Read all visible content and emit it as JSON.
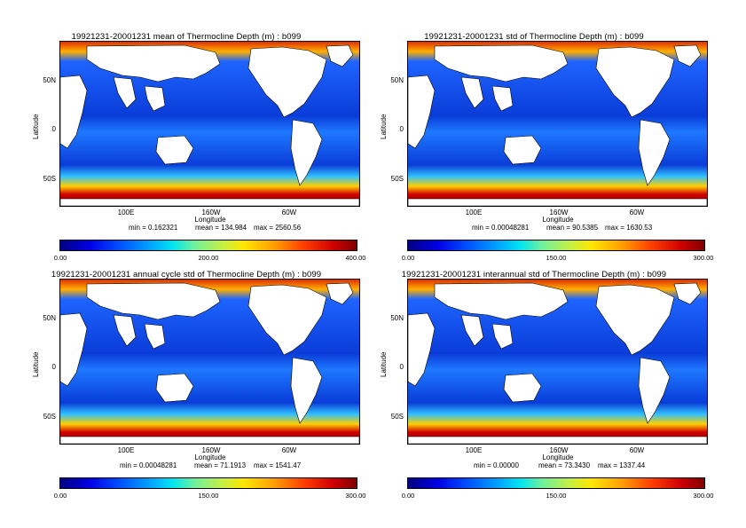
{
  "panels": [
    {
      "title": "19921231-20001231 mean of Thermocline Depth (m) : b099",
      "stats": {
        "min": "min = 0.162321",
        "mean": "mean = 134.984",
        "max": "max = 2560.56"
      },
      "colorbar": {
        "left": "0.00",
        "mid": "200.00",
        "right": "400.00"
      }
    },
    {
      "title": "19921231-20001231 std of Thermocline Depth (m) : b099",
      "stats": {
        "min": "min = 0.00048281",
        "mean": "mean = 90.5385",
        "max": "max = 1630.53"
      },
      "colorbar": {
        "left": "0.00",
        "mid": "150.00",
        "right": "300.00"
      }
    },
    {
      "title": "19921231-20001231 annual cycle std of Thermocline Depth (m) : b099",
      "stats": {
        "min": "min = 0.00048281",
        "mean": "mean = 71.1913",
        "max": "max = 1541.47"
      },
      "colorbar": {
        "left": "0.00",
        "mid": "150.00",
        "right": "300.00"
      }
    },
    {
      "title": "19921231-20001231 interannual std of Thermocline Depth (m) : b099",
      "stats": {
        "min": "min = 0.00000",
        "mean": "mean = 73.3430",
        "max": "max = 1337.44"
      },
      "colorbar": {
        "left": "0.00",
        "mid": "150.00",
        "right": "300.00"
      }
    }
  ],
  "axes": {
    "ylabel": "Latitude",
    "xlabel": "Longitude",
    "yticks": [
      "50N",
      "0",
      "50S"
    ],
    "xticks": [
      "100E",
      "160W",
      "60W"
    ]
  },
  "colors": {
    "ocean_low": "#0000c8",
    "ocean_mid": "#1e64ff",
    "high": "#b40000",
    "land": "#ffffff"
  }
}
